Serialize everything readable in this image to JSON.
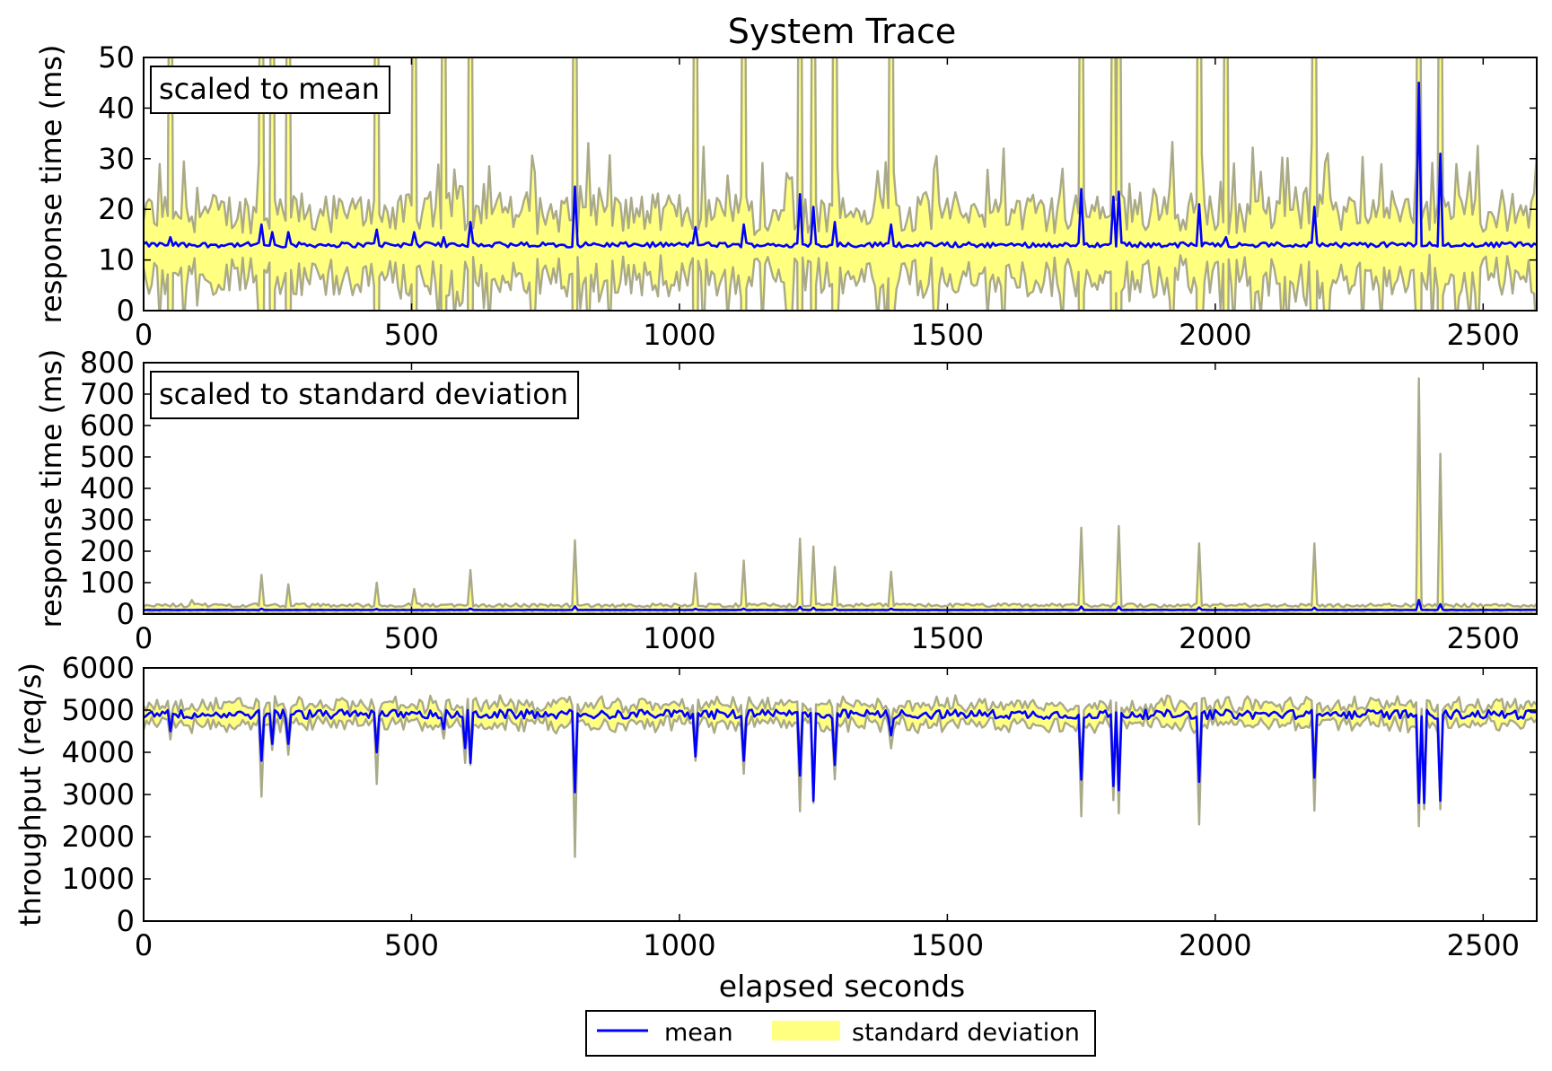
{
  "figure": {
    "title": "System Trace",
    "xlabel": "elapsed seconds",
    "legend": {
      "mean_label": "mean",
      "std_label": "standard deviation",
      "placement": "bottom-center"
    }
  },
  "colors": {
    "mean": "#0000ff",
    "band_fill": "#ffff80",
    "band_edge": "#aaaa88",
    "background": "#ffffff"
  },
  "chart_data": [
    {
      "id": "rt-mean",
      "type": "line",
      "annotation": "scaled to mean",
      "ylabel": "response time (ms)",
      "xlim": [
        0,
        2600
      ],
      "ylim": [
        0,
        50
      ],
      "xticks": [
        0,
        500,
        1000,
        1500,
        2000,
        2500
      ],
      "yticks": [
        0,
        10,
        20,
        30,
        40,
        50
      ],
      "grid": false,
      "series": [
        {
          "name": "mean",
          "kind": "line",
          "baseline": 13,
          "noise": 0.5,
          "spikes": [
            [
              50,
              14.5
            ],
            [
              220,
              17
            ],
            [
              240,
              15.5
            ],
            [
              270,
              15.5
            ],
            [
              435,
              16
            ],
            [
              505,
              15.5
            ],
            [
              560,
              14.5
            ],
            [
              610,
              17.5
            ],
            [
              805,
              24.5
            ],
            [
              1030,
              16.5
            ],
            [
              1120,
              17
            ],
            [
              1225,
              23
            ],
            [
              1250,
              20.5
            ],
            [
              1290,
              17.5
            ],
            [
              1395,
              17
            ],
            [
              1750,
              24
            ],
            [
              1810,
              22.5
            ],
            [
              1820,
              23.5
            ],
            [
              1970,
              21
            ],
            [
              2020,
              14.5
            ],
            [
              2185,
              20.5
            ],
            [
              2380,
              45
            ],
            [
              2420,
              31
            ]
          ]
        },
        {
          "name": "standard deviation",
          "kind": "band",
          "base_half_width": 4,
          "variability": 1.4
        }
      ]
    },
    {
      "id": "rt-std",
      "type": "line",
      "annotation": "scaled to standard deviation",
      "ylabel": "response time (ms)",
      "xlim": [
        0,
        2600
      ],
      "ylim": [
        0,
        800
      ],
      "xticks": [
        0,
        500,
        1000,
        1500,
        2000,
        2500
      ],
      "yticks": [
        0,
        100,
        200,
        300,
        400,
        500,
        600,
        700,
        800
      ],
      "grid": false,
      "series": [
        {
          "name": "mean",
          "kind": "line",
          "baseline": 13,
          "noise": 0.5,
          "spikes": [
            [
              220,
              17
            ],
            [
              435,
              16
            ],
            [
              610,
              17.5
            ],
            [
              805,
              24.5
            ],
            [
              1030,
              16.5
            ],
            [
              1120,
              17
            ],
            [
              1225,
              23
            ],
            [
              1250,
              20.5
            ],
            [
              1290,
              17.5
            ],
            [
              1395,
              17
            ],
            [
              1750,
              24
            ],
            [
              1820,
              23.5
            ],
            [
              1970,
              21
            ],
            [
              2185,
              20.5
            ],
            [
              2380,
              45
            ],
            [
              2420,
              31
            ]
          ]
        },
        {
          "name": "standard deviation",
          "kind": "band",
          "base_upper": 22,
          "base_lower": 5,
          "spikes": [
            [
              90,
              45
            ],
            [
              220,
              125
            ],
            [
              270,
              95
            ],
            [
              435,
              100
            ],
            [
              505,
              80
            ],
            [
              610,
              140
            ],
            [
              805,
              235
            ],
            [
              1030,
              130
            ],
            [
              1120,
              170
            ],
            [
              1225,
              240
            ],
            [
              1250,
              215
            ],
            [
              1290,
              150
            ],
            [
              1395,
              135
            ],
            [
              1750,
              275
            ],
            [
              1820,
              280
            ],
            [
              1970,
              225
            ],
            [
              2185,
              225
            ],
            [
              2380,
              750
            ],
            [
              2420,
              510
            ]
          ]
        }
      ]
    },
    {
      "id": "throughput",
      "type": "line",
      "ylabel": "throughput (req/s)",
      "xlim": [
        0,
        2600
      ],
      "ylim": [
        0,
        6000
      ],
      "xticks": [
        0,
        500,
        1000,
        1500,
        2000,
        2500
      ],
      "yticks": [
        0,
        1000,
        2000,
        3000,
        4000,
        5000,
        6000
      ],
      "grid": false,
      "series": [
        {
          "name": "mean",
          "kind": "line",
          "baseline": 4900,
          "noise": 110,
          "dips": [
            [
              50,
              4500
            ],
            [
              220,
              3800
            ],
            [
              240,
              4200
            ],
            [
              270,
              4200
            ],
            [
              435,
              4000
            ],
            [
              560,
              4550
            ],
            [
              600,
              4100
            ],
            [
              610,
              3750
            ],
            [
              805,
              3050
            ],
            [
              1030,
              3900
            ],
            [
              1120,
              3800
            ],
            [
              1225,
              3450
            ],
            [
              1250,
              2850
            ],
            [
              1290,
              3700
            ],
            [
              1395,
              4400
            ],
            [
              1750,
              3350
            ],
            [
              1810,
              3200
            ],
            [
              1820,
              3100
            ],
            [
              1970,
              3300
            ],
            [
              2185,
              3400
            ],
            [
              2380,
              2800
            ],
            [
              2390,
              2800
            ],
            [
              2420,
              2850
            ]
          ]
        },
        {
          "name": "standard deviation",
          "kind": "band",
          "base_half_width": 200,
          "variability": 1.3,
          "extremes": [
            [
              220,
              2950
            ],
            [
              435,
              3250
            ],
            [
              610,
              3700
            ],
            [
              805,
              1520
            ],
            [
              1030,
              3800
            ],
            [
              1225,
              2600
            ],
            [
              1250,
              2800
            ],
            [
              1750,
              2480
            ],
            [
              1820,
              2550
            ],
            [
              1970,
              2290
            ],
            [
              2185,
              2620
            ],
            [
              2380,
              2250
            ],
            [
              2420,
              2650
            ]
          ]
        }
      ]
    }
  ]
}
